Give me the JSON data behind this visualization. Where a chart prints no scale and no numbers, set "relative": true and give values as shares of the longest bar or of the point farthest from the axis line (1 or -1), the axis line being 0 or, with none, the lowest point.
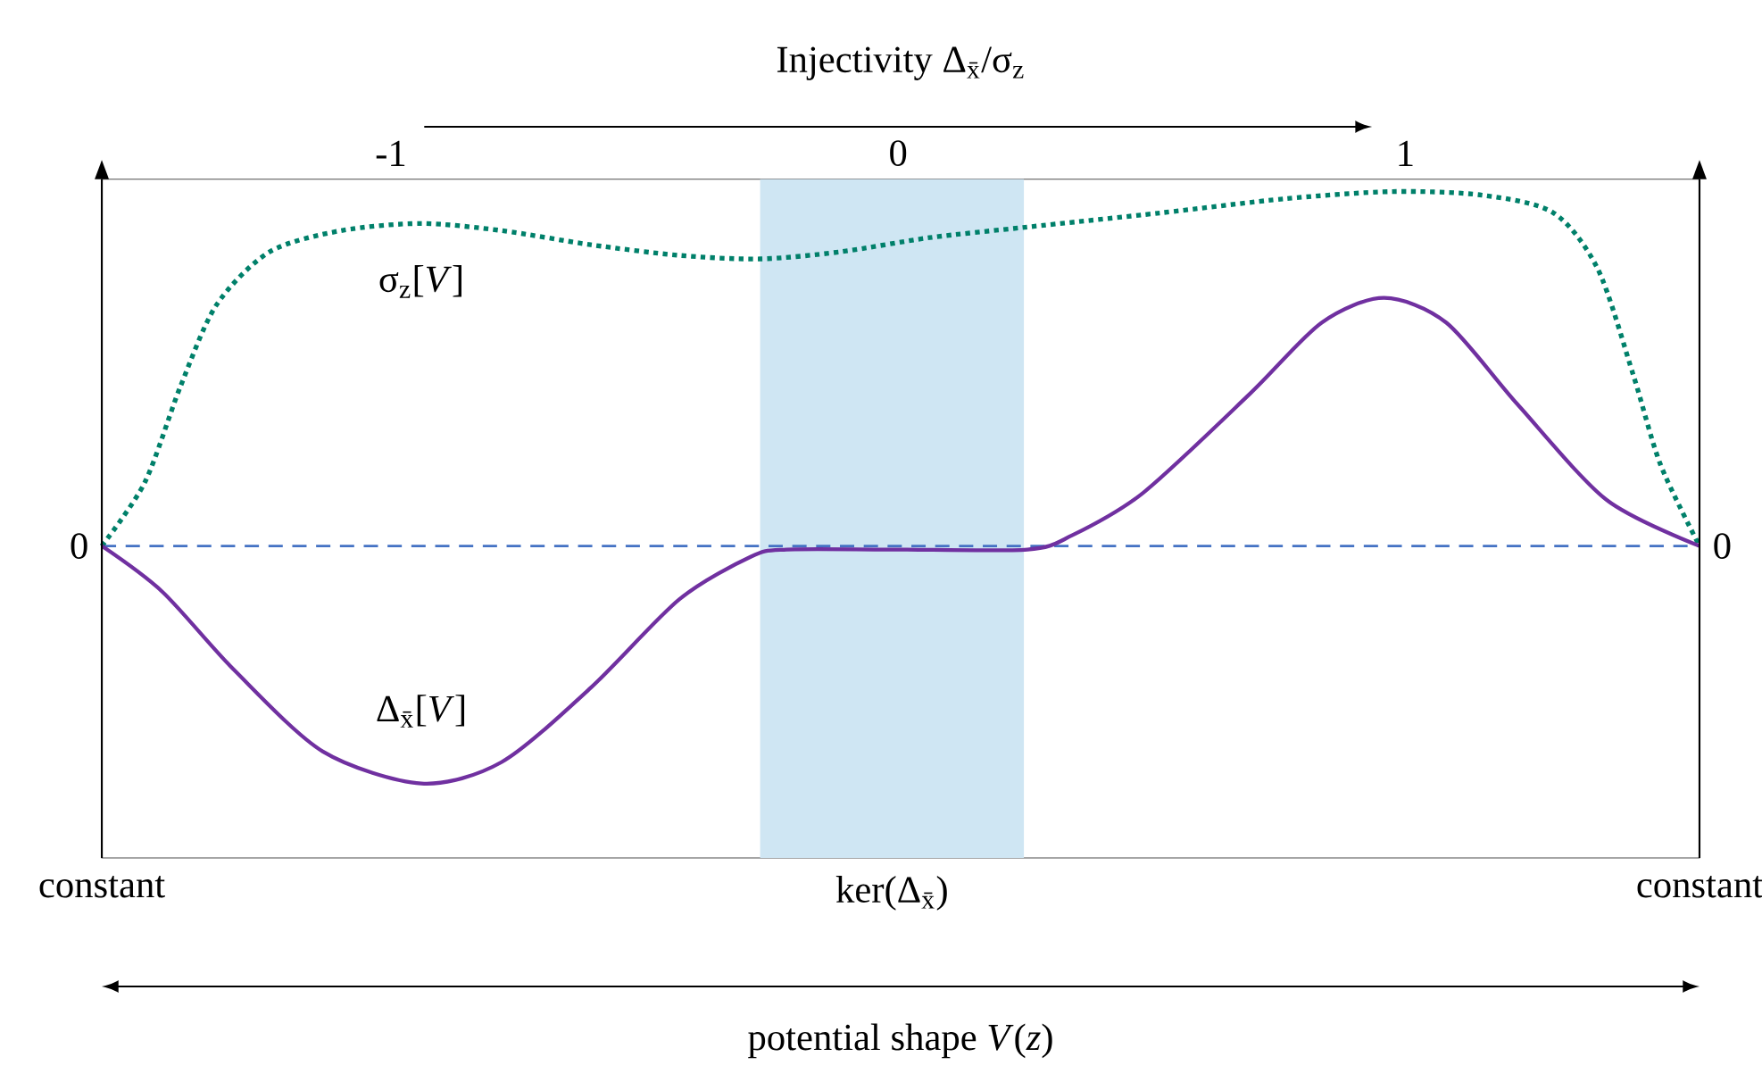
{
  "chart_data": {
    "type": "line",
    "title": "Injectivity Δ$_{x̄}$/σ$_{z}$",
    "relative": true,
    "xlim": [
      -1.57,
      1.58
    ],
    "xticks": [
      -1,
      0,
      1
    ],
    "series": [
      {
        "name": "σ$_{z}$[*V*]",
        "color": "#00806a",
        "line_style": "dotted",
        "x": [
          -1.57,
          -1.485,
          -1.415,
          -1.344,
          -1.239,
          -1.098,
          -0.94,
          -0.782,
          -0.606,
          -0.431,
          -0.272,
          -0.114,
          0.062,
          0.255,
          0.518,
          0.764,
          0.975,
          1.151,
          1.292,
          1.38,
          1.45,
          1.503,
          1.58
        ],
        "values": [
          0,
          0.18,
          0.45,
          0.68,
          0.83,
          0.89,
          0.91,
          0.89,
          0.85,
          0.82,
          0.81,
          0.83,
          0.87,
          0.9,
          0.94,
          0.98,
          1,
          0.99,
          0.94,
          0.78,
          0.48,
          0.23,
          0
        ]
      },
      {
        "name": "Δ$_{x̄}$[*V*]",
        "color": "#7030a0",
        "line_style": "solid",
        "x": [
          -1.57,
          -1.45,
          -1.309,
          -1.134,
          -0.94,
          -0.782,
          -0.606,
          -0.431,
          -0.29,
          -0.22,
          -0.009,
          0.255,
          0.343,
          0.483,
          0.694,
          0.835,
          0.958,
          1.081,
          1.221,
          1.397,
          1.58
        ],
        "values": [
          0,
          -0.13,
          -0.35,
          -0.58,
          -0.67,
          -0.61,
          -0.4,
          -0.15,
          -0.03,
          -0.01,
          -0.01,
          -0.01,
          0.03,
          0.15,
          0.43,
          0.63,
          0.7,
          0.63,
          0.4,
          0.13,
          0
        ]
      }
    ],
    "bands": [
      {
        "axis": "x",
        "from": -0.272,
        "to": 0.248,
        "label": "ker(Δ$_{x̄}$)",
        "color": "#cfe6f3"
      }
    ],
    "ref_lines": [
      {
        "axis": "y",
        "value": 0,
        "label": "0",
        "color": "#4472c4",
        "line_style": "dashed"
      }
    ],
    "annotations": [
      "constant",
      "constant",
      "potential shape *V*(*z*)",
      {
        "text": "0",
        "x": 1.58,
        "y": 0
      }
    ]
  }
}
